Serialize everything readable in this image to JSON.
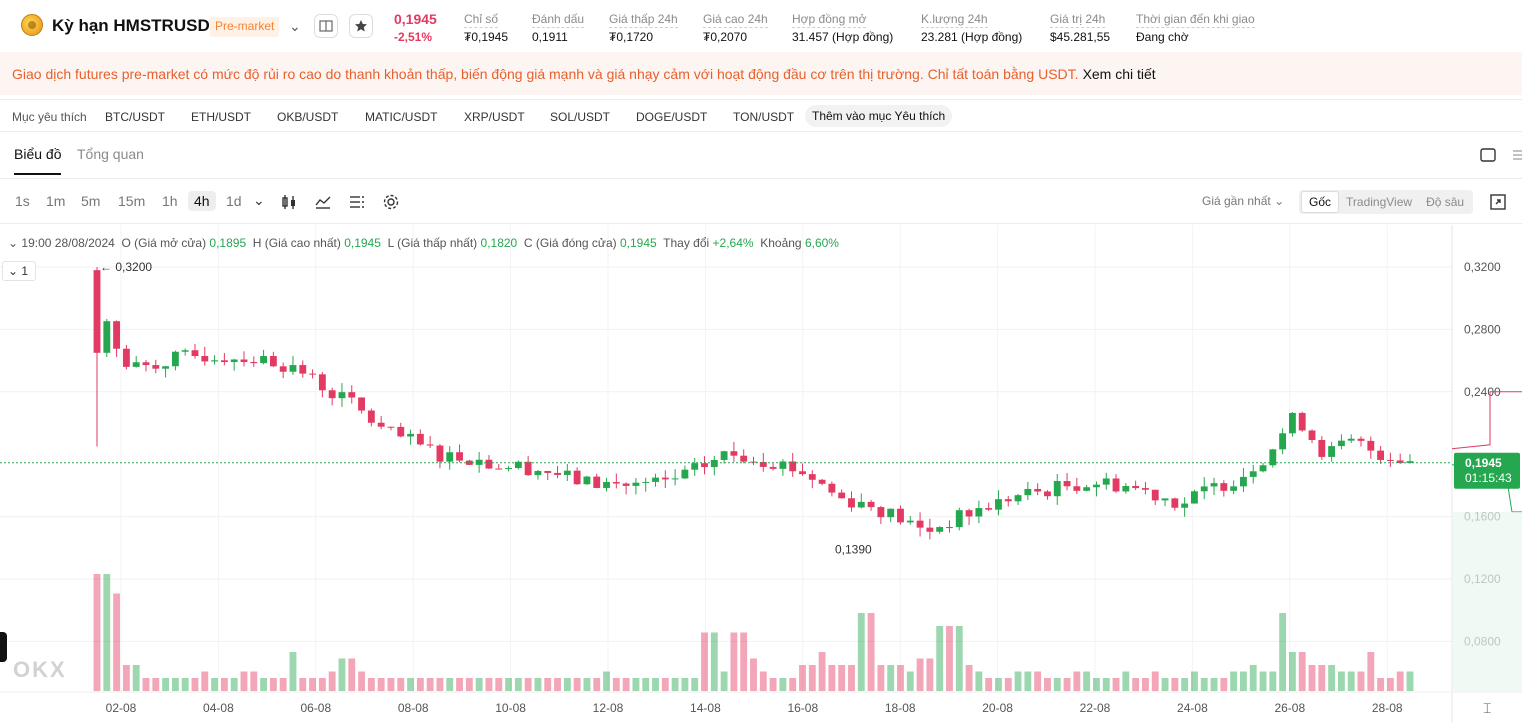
{
  "header": {
    "title": "Kỳ hạn HMSTRUSDT",
    "badge": "Pre-market",
    "last_price": "0,1945",
    "change_pct": "-2,51%",
    "stats": [
      {
        "label": "Chỉ số",
        "value": "₮0,1945"
      },
      {
        "label": "Đánh dấu",
        "value": "0,1911"
      },
      {
        "label": "Giá thấp 24h",
        "value": "₮0,1720"
      },
      {
        "label": "Giá cao 24h",
        "value": "₮0,2070"
      },
      {
        "label": "Hợp đồng mở",
        "value": "31.457 (Hợp đồng)"
      },
      {
        "label": "K.lượng 24h",
        "value": "23.281 (Hợp đồng)"
      },
      {
        "label": "Giá trị 24h",
        "value": "$45.281,55"
      },
      {
        "label": "Thời gian đến khi giao",
        "value": "Đang chờ"
      }
    ]
  },
  "warning": {
    "text": "Giao dịch futures pre-market có mức độ rủi ro cao do thanh khoản thấp, biến động giá mạnh và giá nhạy cảm với hoạt động đầu cơ trên thị trường. Chỉ tất toán bằng USDT.",
    "link": "Xem chi tiết"
  },
  "favorites": {
    "label": "Mục yêu thích",
    "items": [
      "BTC/USDT",
      "ETH/USDT",
      "OKB/USDT",
      "MATIC/USDT",
      "XRP/USDT",
      "SOL/USDT",
      "DOGE/USDT",
      "TON/USDT"
    ],
    "add_label": "Thêm vào mục Yêu thích"
  },
  "tabs": [
    "Biểu đồ",
    "Tổng quan"
  ],
  "toolbar": {
    "timeframes": [
      "1s",
      "1m",
      "5m",
      "15m",
      "1h",
      "4h",
      "1d"
    ],
    "active_timeframe": "4h",
    "price_type": "Giá gần nhất",
    "views": [
      "Gốc",
      "TradingView",
      "Độ sâu"
    ],
    "active_view": "Gốc"
  },
  "ohlc": {
    "time": "19:00 28/08/2024",
    "open_label": "O (Giá mở cửa)",
    "open": "0,1895",
    "high_label": "H (Giá cao nhất)",
    "high": "0,1945",
    "low_label": "L (Giá thấp nhất)",
    "low": "0,1820",
    "close_label": "C (Giá đóng cửa)",
    "close": "0,1945",
    "change_label": "Thay đổi",
    "change": "+2,64%",
    "range_label": "Khoảng",
    "range": "6,60%"
  },
  "legend_count": "1",
  "watermark": "OKX",
  "colors": {
    "up": "#25a750",
    "down": "#e23a62",
    "accent": "#f58431"
  },
  "chart_data": {
    "type": "candlestick",
    "y_ticks": [
      "0,3200",
      "0,2800",
      "0,2400",
      "0,1600",
      "0,1200",
      "0,0800"
    ],
    "ylim": [
      0.05,
      0.33
    ],
    "x_ticks": [
      "02-08",
      "04-08",
      "06-08",
      "08-08",
      "10-08",
      "12-08",
      "14-08",
      "16-08",
      "18-08",
      "20-08",
      "22-08",
      "24-08",
      "26-08",
      "28-08"
    ],
    "current_price_label": "0,1945",
    "countdown_label": "01:15:43",
    "annotations": {
      "high_label": "← 0,3200",
      "low_label": "0,1390"
    },
    "price_path": [
      [
        0,
        0.32,
        0.21
      ],
      [
        1,
        0.275,
        0.22
      ],
      [
        2,
        0.255,
        0.235
      ],
      [
        4,
        0.258,
        0.25
      ],
      [
        6,
        0.262,
        0.258
      ],
      [
        8,
        0.263,
        0.257
      ],
      [
        10,
        0.262,
        0.25
      ],
      [
        12,
        0.26,
        0.245
      ],
      [
        14,
        0.255,
        0.255
      ],
      [
        16,
        0.242,
        0.245
      ],
      [
        18,
        0.232,
        0.205
      ],
      [
        20,
        0.215,
        0.2
      ],
      [
        22,
        0.208,
        0.195
      ],
      [
        24,
        0.2,
        0.195
      ],
      [
        26,
        0.198,
        0.195
      ],
      [
        28,
        0.193,
        0.19
      ],
      [
        30,
        0.192,
        0.191
      ],
      [
        32,
        0.188,
        0.18
      ],
      [
        34,
        0.182,
        0.178
      ],
      [
        36,
        0.181,
        0.18
      ],
      [
        38,
        0.18,
        0.181
      ],
      [
        40,
        0.182,
        0.184
      ],
      [
        42,
        0.19,
        0.198
      ],
      [
        44,
        0.2,
        0.205
      ],
      [
        46,
        0.198,
        0.195
      ],
      [
        48,
        0.194,
        0.19
      ],
      [
        50,
        0.186,
        0.17
      ],
      [
        52,
        0.172,
        0.165
      ],
      [
        54,
        0.168,
        0.16
      ],
      [
        56,
        0.16,
        0.139
      ],
      [
        58,
        0.15,
        0.145
      ],
      [
        60,
        0.158,
        0.16
      ],
      [
        62,
        0.165,
        0.17
      ],
      [
        64,
        0.172,
        0.176
      ],
      [
        66,
        0.176,
        0.176
      ],
      [
        68,
        0.18,
        0.182
      ],
      [
        70,
        0.182,
        0.182
      ],
      [
        72,
        0.18,
        0.178
      ],
      [
        74,
        0.175,
        0.166
      ],
      [
        76,
        0.168,
        0.172
      ],
      [
        78,
        0.178,
        0.182
      ],
      [
        80,
        0.185,
        0.19
      ],
      [
        82,
        0.2,
        0.24
      ],
      [
        84,
        0.225,
        0.198
      ],
      [
        86,
        0.2,
        0.205
      ],
      [
        88,
        0.208,
        0.198
      ],
      [
        90,
        0.2,
        0.195
      ],
      [
        92,
        0.196,
        0.195
      ]
    ],
    "volume_profile": [
      18,
      15,
      4,
      2,
      2,
      2,
      2,
      3,
      2,
      2,
      3,
      2,
      2,
      6,
      2,
      2,
      3,
      5,
      3,
      2,
      2,
      2,
      2,
      2,
      2,
      2,
      2,
      2,
      2,
      2,
      2,
      2,
      2,
      2,
      2,
      3,
      2,
      2,
      2,
      2,
      2,
      2,
      9,
      3,
      9,
      5,
      3,
      2,
      2,
      4,
      6,
      4,
      4,
      12,
      4,
      4,
      3,
      5,
      10,
      10,
      4,
      3,
      2,
      2,
      3,
      3,
      2,
      2,
      3,
      2,
      2,
      3,
      2,
      3,
      2,
      2,
      3,
      2,
      2,
      3,
      4,
      3,
      12,
      6,
      4,
      4,
      3,
      3,
      6,
      2,
      3,
      3
    ]
  }
}
